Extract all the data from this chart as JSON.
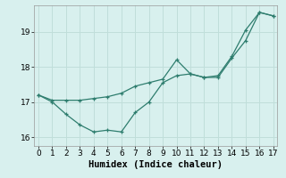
{
  "xlabel": "Humidex (Indice chaleur)",
  "x": [
    0,
    1,
    2,
    3,
    4,
    5,
    6,
    7,
    8,
    9,
    10,
    11,
    12,
    13,
    14,
    15,
    16,
    17
  ],
  "series1": [
    17.2,
    17.0,
    16.65,
    16.35,
    16.15,
    16.2,
    16.15,
    16.7,
    17.0,
    17.55,
    17.75,
    17.8,
    17.7,
    17.7,
    18.25,
    18.75,
    19.55,
    19.45
  ],
  "series2": [
    17.2,
    17.05,
    17.05,
    17.05,
    17.1,
    17.15,
    17.25,
    17.45,
    17.55,
    17.65,
    18.2,
    17.8,
    17.7,
    17.75,
    18.3,
    19.05,
    19.55,
    19.45
  ],
  "line_color": "#2e7d6e",
  "bg_color": "#d8f0ee",
  "grid_color": "#c0deda",
  "ylim": [
    15.75,
    19.75
  ],
  "xlim": [
    -0.3,
    17.3
  ],
  "yticks": [
    16,
    17,
    18,
    19
  ],
  "xticks": [
    0,
    1,
    2,
    3,
    4,
    5,
    6,
    7,
    8,
    9,
    10,
    11,
    12,
    13,
    14,
    15,
    16,
    17
  ],
  "tick_fontsize": 6.5,
  "xlabel_fontsize": 7.5
}
